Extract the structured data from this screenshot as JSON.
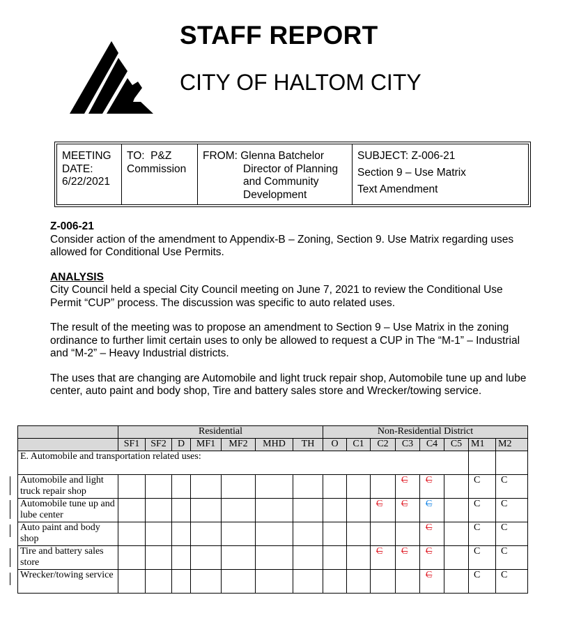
{
  "header": {
    "title": "STAFF REPORT",
    "city": "CITY OF HALTOM CITY"
  },
  "memo": {
    "meeting": [
      "MEETING",
      "DATE:",
      "6/22/2021"
    ],
    "to": [
      "TO:  P&Z",
      "Commission"
    ],
    "from_label": "FROM:",
    "from_name": "Glenna Batchelor",
    "from_title": [
      "Director of Planning",
      "and Community",
      "Development"
    ],
    "subject": [
      "SUBJECT: Z-006-21",
      "Section 9 – Use Matrix",
      "Text Amendment"
    ]
  },
  "body": {
    "case_no": "Z-006-21",
    "case_desc": "Consider action of the amendment to Appendix-B – Zoning, Section 9. Use Matrix regarding uses allowed for Conditional Use Permits.",
    "analysis_heading": "ANALYSIS",
    "paragraphs": [
      "City Council held a special City Council meeting on June 7, 2021 to review the Conditional Use Permit “CUP” process.  The discussion was specific to auto related uses.",
      "The result of the meeting was to propose an amendment to Section 9 – Use Matrix in the zoning ordinance to further limit certain uses to only be allowed to request a CUP in The “M-1” – Industrial and “M-2” – Heavy Industrial districts.",
      "The uses that are changing are Automobile and light truck repair shop, Automobile tune up and lube center, auto paint and body shop, Tire and battery sales store and Wrecker/towing service."
    ]
  },
  "matrix": {
    "groups": [
      "Residential",
      "Non-Residential District"
    ],
    "columns": [
      "SF1",
      "SF2",
      "D",
      "MF1",
      "MF2",
      "MHD",
      "TH",
      "O",
      "C1",
      "C2",
      "C3",
      "C4",
      "C5",
      "M1",
      "M2"
    ],
    "section": "E. Automobile and transportation related uses:",
    "rows": [
      {
        "use": "Automobile and light truck repair shop",
        "cells": [
          "",
          "",
          "",
          "",
          "",
          "",
          "",
          "",
          "",
          "",
          "C-del",
          "C-del",
          "",
          "C",
          "C"
        ]
      },
      {
        "use": "Automobile tune up and lube center",
        "cells": [
          "",
          "",
          "",
          "",
          "",
          "",
          "",
          "",
          "",
          "C-del",
          "C-del",
          "C-del-blue",
          "",
          "C",
          "C"
        ]
      },
      {
        "use": "Auto paint and body shop",
        "cells": [
          "",
          "",
          "",
          "",
          "",
          "",
          "",
          "",
          "",
          "",
          "",
          "C-del",
          "",
          "C",
          "C"
        ]
      },
      {
        "use": "Tire and battery sales store",
        "cells": [
          "",
          "",
          "",
          "",
          "",
          "",
          "",
          "",
          "",
          "C-del",
          "C-del",
          "C-del",
          "",
          "C",
          "C"
        ]
      },
      {
        "use": "Wrecker/towing service",
        "cells": [
          "",
          "",
          "",
          "",
          "",
          "",
          "",
          "",
          "",
          "",
          "",
          "C-del",
          "",
          "C",
          "C"
        ]
      }
    ]
  },
  "colors": {
    "deleted": "#e0202a",
    "deleted_alt": "#1e88e5",
    "header_fill": "#d9d9d9"
  }
}
